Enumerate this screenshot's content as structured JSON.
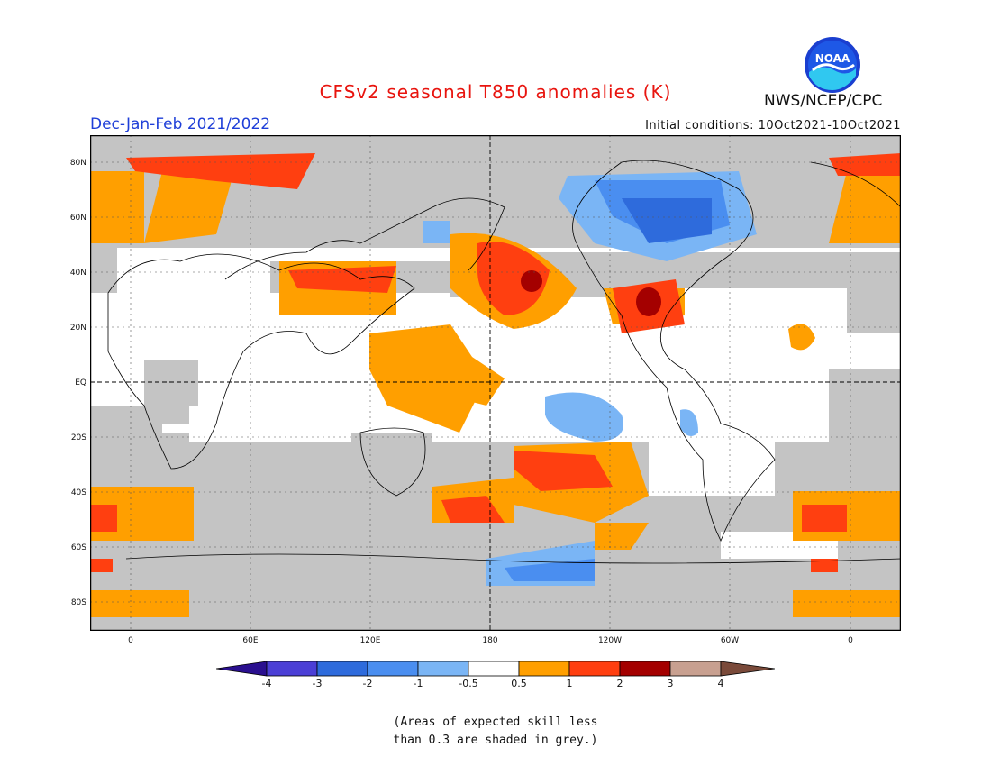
{
  "header": {
    "title": "CFSv2 seasonal T850 anomalies (K)",
    "period": "Dec-Jan-Feb 2021/2022",
    "initial_conditions": "Initial conditions: 10Oct2021-10Oct2021",
    "agency": "NWS/NCEP/CPC",
    "logo_text": "NOAA"
  },
  "axes": {
    "lat_labels": [
      "80N",
      "60N",
      "40N",
      "20N",
      "EQ",
      "20S",
      "40S",
      "60S",
      "80S"
    ],
    "lon_labels": [
      "0",
      "60E",
      "120E",
      "180",
      "120W",
      "60W",
      "0"
    ]
  },
  "colorbar": {
    "labels": [
      "-4",
      "-3",
      "-2",
      "-1",
      "-0.5",
      "0.5",
      "1",
      "2",
      "3",
      "4"
    ],
    "colors": [
      "#2a0f8f",
      "#4b3fd6",
      "#2e6bdc",
      "#4a8ef0",
      "#7ab5f5",
      "#ffffff",
      "#ff9f00",
      "#ff3f10",
      "#a40000",
      "#c8a090",
      "#7a4a3a"
    ]
  },
  "map": {
    "colors": {
      "grey": "#c4c4c4",
      "orange": "#ff9f00",
      "red": "#ff3f10",
      "darkred": "#a40000",
      "lightblue": "#7ab5f5",
      "blue": "#4a8ef0",
      "darkblue": "#2e6bdc"
    }
  },
  "footnote": {
    "line1": "(Areas of expected skill less",
    "line2": "than 0.3 are shaded in grey.)"
  }
}
